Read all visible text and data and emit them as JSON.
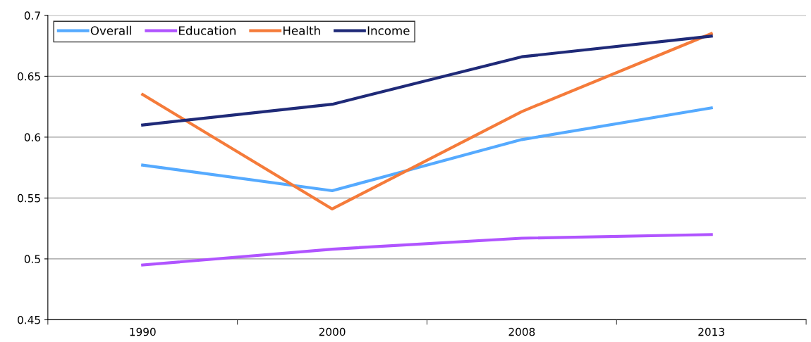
{
  "chart_data": {
    "type": "line",
    "categories": [
      "1990",
      "2000",
      "2008",
      "2013"
    ],
    "series": [
      {
        "name": "Overall",
        "color": "#55aaff",
        "values": [
          0.577,
          0.556,
          0.598,
          0.624
        ]
      },
      {
        "name": "Education",
        "color": "#b054ff",
        "values": [
          0.495,
          0.508,
          0.517,
          0.52
        ]
      },
      {
        "name": "Health",
        "color": "#f57b3a",
        "values": [
          0.635,
          0.541,
          0.621,
          0.685
        ]
      },
      {
        "name": "Income",
        "color": "#1f2a78",
        "values": [
          0.61,
          0.627,
          0.666,
          0.683
        ]
      }
    ],
    "ylim": [
      0.45,
      0.7
    ],
    "yticks": [
      0.45,
      0.5,
      0.55,
      0.6,
      0.65,
      0.7
    ],
    "grid": "y",
    "legend": "top left",
    "marker": "none",
    "line_style": "solid"
  }
}
